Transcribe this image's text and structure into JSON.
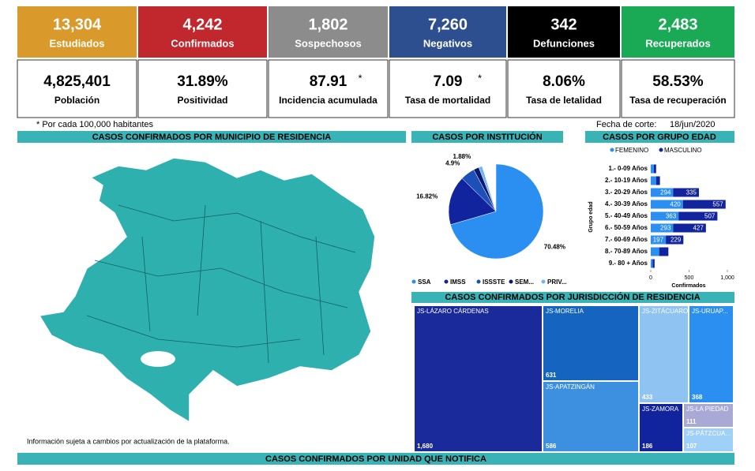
{
  "kpis": [
    {
      "value": "13,304",
      "label": "Estudiados",
      "color": "#d99a2b"
    },
    {
      "value": "4,242",
      "label": "Confirmados",
      "color": "#c0282d"
    },
    {
      "value": "1,802",
      "label": "Sospechosos",
      "color": "#8c8c8c"
    },
    {
      "value": "7,260",
      "label": "Negativos",
      "color": "#2e4f8f"
    },
    {
      "value": "342",
      "label": "Defunciones",
      "color": "#000000"
    },
    {
      "value": "2,483",
      "label": "Recuperados",
      "color": "#1aaa55"
    }
  ],
  "indicators": [
    {
      "value": "4,825,401",
      "label": "Población"
    },
    {
      "value": "31.89%",
      "label": "Positividad"
    },
    {
      "value": "87.91",
      "mark": "*",
      "label": "Incidencia acumulada"
    },
    {
      "value": "7.09",
      "mark": "*",
      "label": "Tasa de mortalidad"
    },
    {
      "value": "8.06%",
      "label": "Tasa de letalidad"
    },
    {
      "value": "58.53%",
      "label": "Tasa de recuperación"
    }
  ],
  "footnote": "* Por cada 100,000 habitantes",
  "cutoff": {
    "label": "Fecha de corte:",
    "date": "18/jun/2020"
  },
  "map": {
    "title": "CASOS CONFIRMADOS POR MUNICIPIO DE RESIDENCIA",
    "note": "Información sujeta a cambios por actualización de la plataforma."
  },
  "chart_data": [
    {
      "type": "pie",
      "title": "CASOS POR INSTITUCIÓN",
      "categories": [
        "SSA",
        "IMSS",
        "ISSSTE",
        "SEM...",
        "PRIV..."
      ],
      "values": [
        70.48,
        16.82,
        4.9,
        1.88,
        1.2
      ],
      "value_labels": [
        "70.48%",
        "16.82%",
        "4.9%",
        "1.88%",
        null
      ],
      "colors": [
        "#2a8ff0",
        "#12239e",
        "#1c4fb8",
        "#0b1a6e",
        "#6fb6f7"
      ]
    },
    {
      "type": "bar",
      "orientation": "horizontal",
      "stacked": true,
      "title": "CASOS POR GRUPO EDAD",
      "categories": [
        "1.- 0-09 Años",
        "2.- 10-19 Años",
        "3.- 20-29 Años",
        "4.- 30-39 Años",
        "5.- 40-49 Años",
        "6.- 50-59 Años",
        "7.- 60-69 Años",
        "8.- 70-89 Años",
        "9.- 80 + Años"
      ],
      "series": [
        {
          "name": "FEMENINO",
          "color": "#2a8ff0",
          "values": [
            40,
            70,
            294,
            420,
            363,
            293,
            197,
            110,
            25
          ]
        },
        {
          "name": "MASCULINO",
          "color": "#12239e",
          "values": [
            30,
            50,
            335,
            557,
            507,
            427,
            229,
            120,
            25
          ]
        }
      ],
      "xlim": [
        0,
        1000
      ],
      "xticks": [
        0,
        500,
        {
          "value": 1000,
          "label": "1,000"
        }
      ],
      "xlabel": "Confirmados",
      "ylabel": "Grupo edad"
    },
    {
      "type": "treemap",
      "title": "CASOS CONFIRMADOS POR JURISDICCIÓN DE RESIDENCIA",
      "categories": [
        "JS-LÁZARO CÁRDENAS",
        "JS-MORELIA",
        "JS-APATZINGÁN",
        "JS-ZITÁCUARO",
        "JS-URUAP...",
        "JS-ZAMORA",
        "JS-LA PIEDAD",
        "JS-PÁTZCUA..."
      ],
      "values": [
        1680,
        631,
        586,
        433,
        368,
        186,
        111,
        107
      ],
      "value_labels": [
        "1,680",
        "631",
        "586",
        "433",
        "368",
        "186",
        "111",
        "107"
      ],
      "colors": [
        "#1a2a9a",
        "#1565c0",
        "#3d8fe0",
        "#8ec3f2",
        "#2a8ff0",
        "#12239e",
        "#a9a9d6",
        "#9fd0f7"
      ]
    }
  ],
  "bottom_section": {
    "title": "CASOS CONFIRMADOS POR UNIDAD QUE NOTIFICA"
  }
}
